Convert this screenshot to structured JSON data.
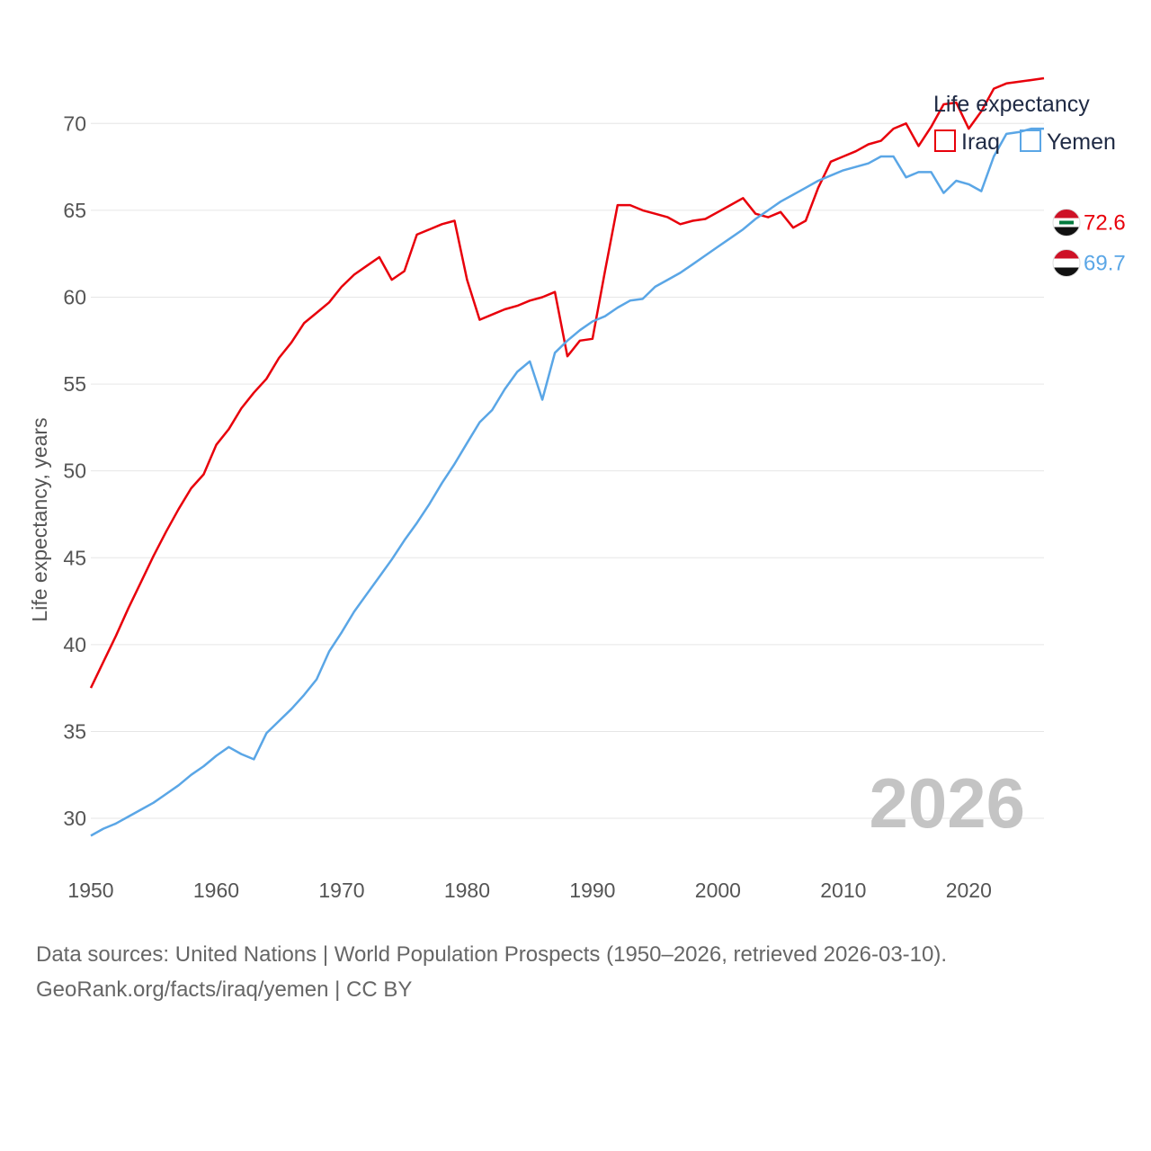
{
  "chart_data": {
    "type": "line",
    "title": "",
    "xlabel": "",
    "ylabel": "Life expectancy, years",
    "xlim": [
      1950,
      2026
    ],
    "ylim": [
      27,
      74
    ],
    "y_ticks": [
      30,
      35,
      40,
      45,
      50,
      55,
      60,
      65,
      70
    ],
    "x_ticks": [
      1950,
      1960,
      1970,
      1980,
      1990,
      2000,
      2010,
      2020
    ],
    "grid": true,
    "legend_title": "Life expectancy",
    "legend_position": "top-right",
    "year_label": "2026",
    "series": [
      {
        "name": "Iraq",
        "color": "#e8000b",
        "end_label": "72.6",
        "flag": "iraq-flag",
        "x": [
          1950,
          1951,
          1952,
          1953,
          1954,
          1955,
          1956,
          1957,
          1958,
          1959,
          1960,
          1961,
          1962,
          1963,
          1964,
          1965,
          1966,
          1967,
          1968,
          1969,
          1970,
          1971,
          1972,
          1973,
          1974,
          1975,
          1976,
          1977,
          1978,
          1979,
          1980,
          1981,
          1982,
          1983,
          1984,
          1985,
          1986,
          1987,
          1988,
          1989,
          1990,
          1991,
          1992,
          1993,
          1994,
          1995,
          1996,
          1997,
          1998,
          1999,
          2000,
          2001,
          2002,
          2003,
          2004,
          2005,
          2006,
          2007,
          2008,
          2009,
          2010,
          2011,
          2012,
          2013,
          2014,
          2015,
          2016,
          2017,
          2018,
          2019,
          2020,
          2021,
          2022,
          2023,
          2024,
          2025,
          2026
        ],
        "values": [
          37.5,
          39.0,
          40.5,
          42.1,
          43.6,
          45.1,
          46.5,
          47.8,
          49.0,
          49.8,
          51.5,
          52.4,
          53.6,
          54.5,
          55.3,
          56.5,
          57.4,
          58.5,
          59.1,
          59.7,
          60.6,
          61.3,
          61.8,
          62.3,
          61.0,
          61.5,
          63.6,
          63.9,
          64.2,
          64.4,
          61.0,
          58.7,
          59.0,
          59.3,
          59.5,
          59.8,
          60.0,
          60.3,
          56.6,
          57.5,
          57.6,
          61.5,
          65.3,
          65.3,
          65.0,
          64.8,
          64.6,
          64.2,
          64.4,
          64.5,
          64.9,
          65.3,
          65.7,
          64.8,
          64.6,
          64.9,
          64.0,
          64.4,
          66.3,
          67.8,
          68.1,
          68.4,
          68.8,
          69.0,
          69.7,
          70.0,
          68.7,
          69.8,
          71.1,
          71.2,
          69.7,
          70.7,
          72.0,
          72.3,
          72.4,
          72.5,
          72.6
        ]
      },
      {
        "name": "Yemen",
        "color": "#5aa6e6",
        "end_label": "69.7",
        "flag": "yemen-flag",
        "x": [
          1950,
          1951,
          1952,
          1953,
          1954,
          1955,
          1956,
          1957,
          1958,
          1959,
          1960,
          1961,
          1962,
          1963,
          1964,
          1965,
          1966,
          1967,
          1968,
          1969,
          1970,
          1971,
          1972,
          1973,
          1974,
          1975,
          1976,
          1977,
          1978,
          1979,
          1980,
          1981,
          1982,
          1983,
          1984,
          1985,
          1986,
          1987,
          1988,
          1989,
          1990,
          1991,
          1992,
          1993,
          1994,
          1995,
          1996,
          1997,
          1998,
          1999,
          2000,
          2001,
          2002,
          2003,
          2004,
          2005,
          2006,
          2007,
          2008,
          2009,
          2010,
          2011,
          2012,
          2013,
          2014,
          2015,
          2016,
          2017,
          2018,
          2019,
          2020,
          2021,
          2022,
          2023,
          2024,
          2025,
          2026
        ],
        "values": [
          29.0,
          29.4,
          29.7,
          30.1,
          30.5,
          30.9,
          31.4,
          31.9,
          32.5,
          33.0,
          33.6,
          34.1,
          33.7,
          33.4,
          34.9,
          35.6,
          36.3,
          37.1,
          38.0,
          39.6,
          40.7,
          41.9,
          42.9,
          43.9,
          44.9,
          46.0,
          47.0,
          48.1,
          49.3,
          50.4,
          51.6,
          52.8,
          53.5,
          54.7,
          55.7,
          56.3,
          54.1,
          56.8,
          57.5,
          58.1,
          58.6,
          58.9,
          59.4,
          59.8,
          59.9,
          60.6,
          61.0,
          61.4,
          61.9,
          62.4,
          62.9,
          63.4,
          63.9,
          64.5,
          65.0,
          65.5,
          65.9,
          66.3,
          66.7,
          67.0,
          67.3,
          67.5,
          67.7,
          68.1,
          68.1,
          66.9,
          67.2,
          67.2,
          66.0,
          66.7,
          66.5,
          66.1,
          68.1,
          69.4,
          69.5,
          69.7,
          69.7
        ]
      }
    ]
  },
  "footer": {
    "source_line1": "Data sources: United Nations | World Population Prospects (1950–2026, retrieved 2026-03-10).",
    "source_line2": "GeoRank.org/facts/iraq/yemen | CC BY"
  }
}
